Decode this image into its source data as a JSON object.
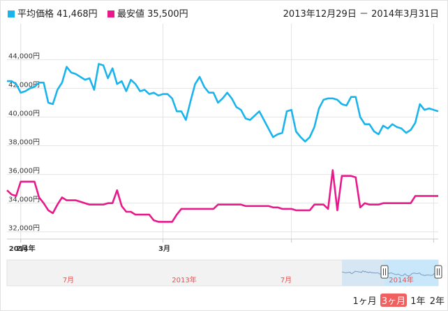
{
  "legend": {
    "avg_label": "平均価格 41,468円",
    "min_label": "最安値 35,500円"
  },
  "date_range": "2013年12月29日 － 2014年3月31日",
  "colors": {
    "avg": "#1ab4ec",
    "min": "#e8198b"
  },
  "range_buttons": {
    "m1": "1ヶ月",
    "m3": "3ヶ月",
    "y1": "1年",
    "y2": "2年",
    "active": "m3"
  },
  "navigator": {
    "labels": [
      "7月",
      "2013年",
      "7月",
      "2014年"
    ]
  },
  "chart_data": {
    "type": "line",
    "title": "",
    "xlabel": "",
    "ylabel": "",
    "ylim": [
      31500,
      46500
    ],
    "y_ticks": [
      "32,000円",
      "34,000円",
      "36,000円",
      "38,000円",
      "40,000円",
      "42,000円",
      "44,000円"
    ],
    "x_ticks": [
      "2014年",
      "2月",
      "3月"
    ],
    "grid": true,
    "series": [
      {
        "name": "平均価格",
        "color": "#1ab4ec",
        "points": [
          [
            "2013-12-29",
            42500
          ],
          [
            "2013-12-30",
            42500
          ],
          [
            "2013-12-31",
            42300
          ],
          [
            "2014-01-01",
            41700
          ],
          [
            "2014-01-02",
            41800
          ],
          [
            "2014-01-03",
            42000
          ],
          [
            "2014-01-04",
            42100
          ],
          [
            "2014-01-05",
            42400
          ],
          [
            "2014-01-06",
            42400
          ],
          [
            "2014-01-07",
            41000
          ],
          [
            "2014-01-08",
            40900
          ],
          [
            "2014-01-09",
            41900
          ],
          [
            "2014-01-10",
            42400
          ],
          [
            "2014-01-11",
            43500
          ],
          [
            "2014-01-12",
            43100
          ],
          [
            "2014-01-13",
            43000
          ],
          [
            "2014-01-14",
            42800
          ],
          [
            "2014-01-15",
            42600
          ],
          [
            "2014-01-16",
            42700
          ],
          [
            "2014-01-17",
            41900
          ],
          [
            "2014-01-18",
            43700
          ],
          [
            "2014-01-19",
            43600
          ],
          [
            "2014-01-20",
            42700
          ],
          [
            "2014-01-21",
            43400
          ],
          [
            "2014-01-22",
            42300
          ],
          [
            "2014-01-23",
            42500
          ],
          [
            "2014-01-24",
            41800
          ],
          [
            "2014-01-25",
            42600
          ],
          [
            "2014-01-26",
            42300
          ],
          [
            "2014-01-27",
            41800
          ],
          [
            "2014-01-28",
            41900
          ],
          [
            "2014-01-29",
            41600
          ],
          [
            "2014-01-30",
            41700
          ],
          [
            "2014-01-31",
            41500
          ],
          [
            "2014-02-01",
            41600
          ],
          [
            "2014-02-02",
            41600
          ],
          [
            "2014-02-03",
            41300
          ],
          [
            "2014-02-04",
            40400
          ],
          [
            "2014-02-05",
            40400
          ],
          [
            "2014-02-06",
            39800
          ],
          [
            "2014-02-07",
            41100
          ],
          [
            "2014-02-08",
            42300
          ],
          [
            "2014-02-09",
            42800
          ],
          [
            "2014-02-10",
            42100
          ],
          [
            "2014-02-11",
            41700
          ],
          [
            "2014-02-12",
            41700
          ],
          [
            "2014-02-13",
            41000
          ],
          [
            "2014-02-14",
            41300
          ],
          [
            "2014-02-15",
            41700
          ],
          [
            "2014-02-16",
            41300
          ],
          [
            "2014-02-17",
            40700
          ],
          [
            "2014-02-18",
            40500
          ],
          [
            "2014-02-19",
            39900
          ],
          [
            "2014-02-20",
            39800
          ],
          [
            "2014-02-21",
            40100
          ],
          [
            "2014-02-22",
            40400
          ],
          [
            "2014-02-23",
            39800
          ],
          [
            "2014-02-24",
            39200
          ],
          [
            "2014-02-25",
            38600
          ],
          [
            "2014-02-26",
            38800
          ],
          [
            "2014-02-27",
            38900
          ],
          [
            "2014-02-28",
            40400
          ],
          [
            "2014-03-01",
            40500
          ],
          [
            "2014-03-02",
            39000
          ],
          [
            "2014-03-03",
            38600
          ],
          [
            "2014-03-04",
            38300
          ],
          [
            "2014-03-05",
            38600
          ],
          [
            "2014-03-06",
            39300
          ],
          [
            "2014-03-07",
            40600
          ],
          [
            "2014-03-08",
            41200
          ],
          [
            "2014-03-09",
            41300
          ],
          [
            "2014-03-10",
            41300
          ],
          [
            "2014-03-11",
            41200
          ],
          [
            "2014-03-12",
            40900
          ],
          [
            "2014-03-13",
            40800
          ],
          [
            "2014-03-14",
            41400
          ],
          [
            "2014-03-15",
            41400
          ],
          [
            "2014-03-16",
            40000
          ],
          [
            "2014-03-17",
            39500
          ],
          [
            "2014-03-18",
            39500
          ],
          [
            "2014-03-19",
            39000
          ],
          [
            "2014-03-20",
            38800
          ],
          [
            "2014-03-21",
            39400
          ],
          [
            "2014-03-22",
            39200
          ],
          [
            "2014-03-23",
            39500
          ],
          [
            "2014-03-24",
            39300
          ],
          [
            "2014-03-25",
            39200
          ],
          [
            "2014-03-26",
            38900
          ],
          [
            "2014-03-27",
            39100
          ],
          [
            "2014-03-28",
            39600
          ],
          [
            "2014-03-29",
            40900
          ],
          [
            "2014-03-30",
            40500
          ],
          [
            "2014-03-31",
            40600
          ],
          [
            "2014-04-01",
            40500
          ],
          [
            "2014-04-02",
            40400
          ]
        ]
      },
      {
        "name": "最安値",
        "color": "#e8198b",
        "points": [
          [
            "2013-12-29",
            34900
          ],
          [
            "2013-12-30",
            34600
          ],
          [
            "2013-12-31",
            34500
          ],
          [
            "2014-01-01",
            35500
          ],
          [
            "2014-01-02",
            35500
          ],
          [
            "2014-01-03",
            35500
          ],
          [
            "2014-01-04",
            35500
          ],
          [
            "2014-01-05",
            34400
          ],
          [
            "2014-01-06",
            34000
          ],
          [
            "2014-01-07",
            33500
          ],
          [
            "2014-01-08",
            33300
          ],
          [
            "2014-01-09",
            33900
          ],
          [
            "2014-01-10",
            34400
          ],
          [
            "2014-01-11",
            34200
          ],
          [
            "2014-01-12",
            34200
          ],
          [
            "2014-01-13",
            34200
          ],
          [
            "2014-01-14",
            34100
          ],
          [
            "2014-01-15",
            34000
          ],
          [
            "2014-01-16",
            33900
          ],
          [
            "2014-01-17",
            33900
          ],
          [
            "2014-01-18",
            33900
          ],
          [
            "2014-01-19",
            33900
          ],
          [
            "2014-01-20",
            34000
          ],
          [
            "2014-01-21",
            34000
          ],
          [
            "2014-01-22",
            34900
          ],
          [
            "2014-01-23",
            33800
          ],
          [
            "2014-01-24",
            33400
          ],
          [
            "2014-01-25",
            33400
          ],
          [
            "2014-01-26",
            33200
          ],
          [
            "2014-01-27",
            33200
          ],
          [
            "2014-01-28",
            33200
          ],
          [
            "2014-01-29",
            33200
          ],
          [
            "2014-01-30",
            32800
          ],
          [
            "2014-01-31",
            32700
          ],
          [
            "2014-02-01",
            32700
          ],
          [
            "2014-02-02",
            32700
          ],
          [
            "2014-02-03",
            32700
          ],
          [
            "2014-02-04",
            33200
          ],
          [
            "2014-02-05",
            33600
          ],
          [
            "2014-02-06",
            33600
          ],
          [
            "2014-02-07",
            33600
          ],
          [
            "2014-02-08",
            33600
          ],
          [
            "2014-02-09",
            33600
          ],
          [
            "2014-02-10",
            33600
          ],
          [
            "2014-02-11",
            33600
          ],
          [
            "2014-02-12",
            33600
          ],
          [
            "2014-02-13",
            33900
          ],
          [
            "2014-02-14",
            33900
          ],
          [
            "2014-02-15",
            33900
          ],
          [
            "2014-02-16",
            33900
          ],
          [
            "2014-02-17",
            33900
          ],
          [
            "2014-02-18",
            33900
          ],
          [
            "2014-02-19",
            33800
          ],
          [
            "2014-02-20",
            33800
          ],
          [
            "2014-02-21",
            33800
          ],
          [
            "2014-02-22",
            33800
          ],
          [
            "2014-02-23",
            33800
          ],
          [
            "2014-02-24",
            33800
          ],
          [
            "2014-02-25",
            33700
          ],
          [
            "2014-02-26",
            33700
          ],
          [
            "2014-02-27",
            33600
          ],
          [
            "2014-02-28",
            33600
          ],
          [
            "2014-03-01",
            33600
          ],
          [
            "2014-03-02",
            33500
          ],
          [
            "2014-03-03",
            33500
          ],
          [
            "2014-03-04",
            33500
          ],
          [
            "2014-03-05",
            33500
          ],
          [
            "2014-03-06",
            33900
          ],
          [
            "2014-03-07",
            33900
          ],
          [
            "2014-03-08",
            33900
          ],
          [
            "2014-03-09",
            33600
          ],
          [
            "2014-03-10",
            36300
          ],
          [
            "2014-03-11",
            33500
          ],
          [
            "2014-03-12",
            35900
          ],
          [
            "2014-03-13",
            35900
          ],
          [
            "2014-03-14",
            35900
          ],
          [
            "2014-03-15",
            35800
          ],
          [
            "2014-03-16",
            33700
          ],
          [
            "2014-03-17",
            34000
          ],
          [
            "2014-03-18",
            33900
          ],
          [
            "2014-03-19",
            33900
          ],
          [
            "2014-03-20",
            33900
          ],
          [
            "2014-03-21",
            34000
          ],
          [
            "2014-03-22",
            34000
          ],
          [
            "2014-03-23",
            34000
          ],
          [
            "2014-03-24",
            34000
          ],
          [
            "2014-03-25",
            34000
          ],
          [
            "2014-03-26",
            34000
          ],
          [
            "2014-03-27",
            34000
          ],
          [
            "2014-03-28",
            34500
          ],
          [
            "2014-03-29",
            34500
          ],
          [
            "2014-03-30",
            34500
          ],
          [
            "2014-03-31",
            34500
          ],
          [
            "2014-04-01",
            34500
          ],
          [
            "2014-04-02",
            34500
          ]
        ]
      }
    ]
  }
}
